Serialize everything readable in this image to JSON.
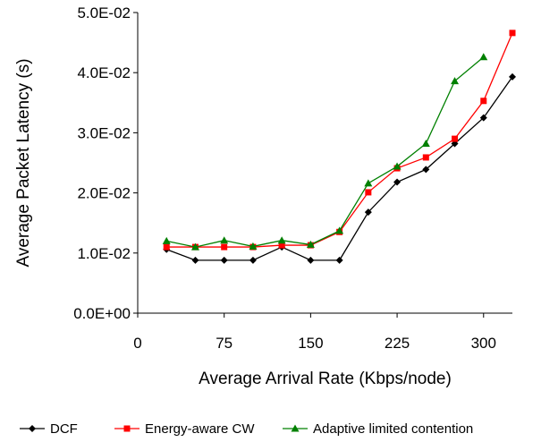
{
  "chart_data": {
    "type": "line",
    "xlabel": "Average Arrival Rate (Kbps/node)",
    "ylabel": "Average Packet Latency (s)",
    "xlim": [
      0,
      325
    ],
    "ylim": [
      0,
      0.05
    ],
    "x_ticks": [
      0,
      75,
      150,
      225,
      300
    ],
    "x_tick_labels": [
      "0",
      "75",
      "150",
      "225",
      "300"
    ],
    "y_ticks": [
      0,
      0.01,
      0.02,
      0.03,
      0.04,
      0.05
    ],
    "y_tick_labels": [
      "0.0E+00",
      "1.0E-02",
      "2.0E-02",
      "3.0E-02",
      "4.0E-02",
      "5.0E-02"
    ],
    "grid": false,
    "legend_position": "bottom",
    "series": [
      {
        "name": "DCF",
        "color": "#000000",
        "marker": "diamond",
        "x": [
          25,
          50,
          75,
          100,
          125,
          150,
          175,
          200,
          225,
          250,
          275,
          300,
          325
        ],
        "y": [
          0.0106,
          0.0088,
          0.0088,
          0.0088,
          0.011,
          0.0088,
          0.0088,
          0.0168,
          0.0218,
          0.0239,
          0.0282,
          0.0325,
          0.0393
        ]
      },
      {
        "name": "Energy-aware CW",
        "color": "#ff0000",
        "marker": "square",
        "x": [
          25,
          50,
          75,
          100,
          125,
          150,
          175,
          200,
          225,
          250,
          275,
          300,
          325
        ],
        "y": [
          0.011,
          0.011,
          0.011,
          0.011,
          0.0113,
          0.0113,
          0.0135,
          0.0201,
          0.0241,
          0.0259,
          0.029,
          0.0353,
          0.0466
        ]
      },
      {
        "name": "Adaptive limited contention",
        "color": "#008000",
        "marker": "triangle",
        "x": [
          25,
          50,
          75,
          100,
          125,
          150,
          175,
          200,
          225,
          250,
          275,
          300
        ],
        "y": [
          0.012,
          0.011,
          0.0121,
          0.0111,
          0.0121,
          0.0114,
          0.0137,
          0.0216,
          0.0244,
          0.0282,
          0.0386,
          0.0426
        ]
      }
    ]
  }
}
